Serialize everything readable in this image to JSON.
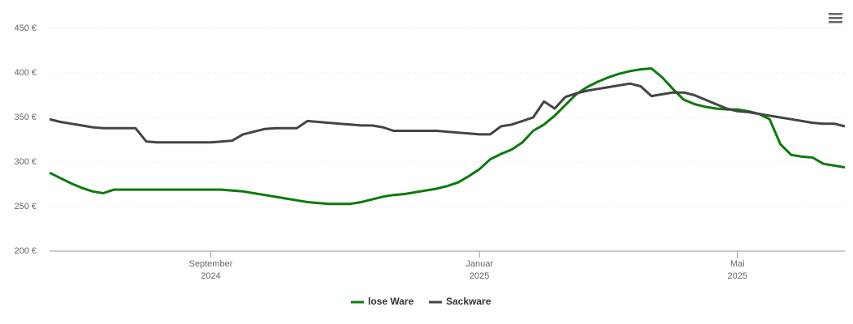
{
  "chart_data": {
    "type": "line",
    "categories": [
      null,
      null,
      null,
      null,
      null,
      null,
      null,
      null,
      null,
      null,
      null,
      null,
      null,
      null,
      null,
      null,
      null,
      null,
      null,
      null,
      null,
      null,
      null,
      null,
      null,
      null,
      null,
      null,
      null,
      null,
      null,
      null,
      null,
      null,
      null,
      null,
      null,
      null,
      null,
      null,
      null,
      null,
      null,
      null,
      null,
      null,
      null,
      null,
      null,
      null,
      null,
      null,
      null,
      null,
      null,
      null,
      null,
      null,
      null,
      null,
      null,
      null,
      null,
      null,
      null,
      null,
      null,
      null,
      null,
      null,
      null,
      null,
      null,
      null,
      null
    ],
    "xticks": [
      {
        "value": 15,
        "label": [
          "September",
          "2024"
        ]
      },
      {
        "value": 40,
        "label": [
          "Januar",
          "2025"
        ]
      },
      {
        "value": 64,
        "label": [
          "Mai",
          "2025"
        ]
      }
    ],
    "ylim": [
      200,
      450
    ],
    "yticks": [
      {
        "value": 200,
        "label": "200 €"
      },
      {
        "value": 250,
        "label": "250 €"
      },
      {
        "value": 300,
        "label": "300 €"
      },
      {
        "value": 350,
        "label": "350 €"
      },
      {
        "value": 400,
        "label": "400 €"
      },
      {
        "value": 450,
        "label": "450 €"
      }
    ],
    "grid": true,
    "series": [
      {
        "name": "lose Ware",
        "color": "#0b7a0b",
        "values": [
          288,
          282,
          276,
          271,
          267,
          265,
          269,
          269,
          269,
          269,
          269,
          269,
          269,
          269,
          269,
          269,
          269,
          268,
          267,
          265,
          263,
          261,
          259,
          257,
          255,
          254,
          253,
          253,
          253,
          255,
          258,
          261,
          263,
          264,
          266,
          268,
          270,
          273,
          277,
          284,
          292,
          303,
          309,
          314,
          322,
          335,
          342,
          352,
          364,
          376,
          384,
          390,
          395,
          399,
          402,
          404,
          405,
          395,
          382,
          370,
          365,
          362,
          360,
          359,
          359,
          357,
          354,
          348,
          320,
          308,
          306,
          305,
          298,
          296,
          294
        ]
      },
      {
        "name": "Sackware",
        "color": "#444444",
        "values": [
          348,
          345,
          343,
          341,
          339,
          338,
          338,
          338,
          338,
          323,
          322,
          322,
          322,
          322,
          322,
          322,
          323,
          324,
          331,
          334,
          337,
          338,
          338,
          338,
          346,
          345,
          344,
          343,
          342,
          341,
          341,
          339,
          335,
          335,
          335,
          335,
          335,
          334,
          333,
          332,
          331,
          331,
          340,
          342,
          346,
          350,
          368,
          360,
          373,
          377,
          380,
          382,
          384,
          386,
          388,
          385,
          374,
          376,
          378,
          378,
          375,
          370,
          365,
          360,
          357,
          356,
          354,
          352,
          350,
          348,
          346,
          344,
          343,
          343,
          340
        ]
      }
    ],
    "legend": "bottom"
  }
}
